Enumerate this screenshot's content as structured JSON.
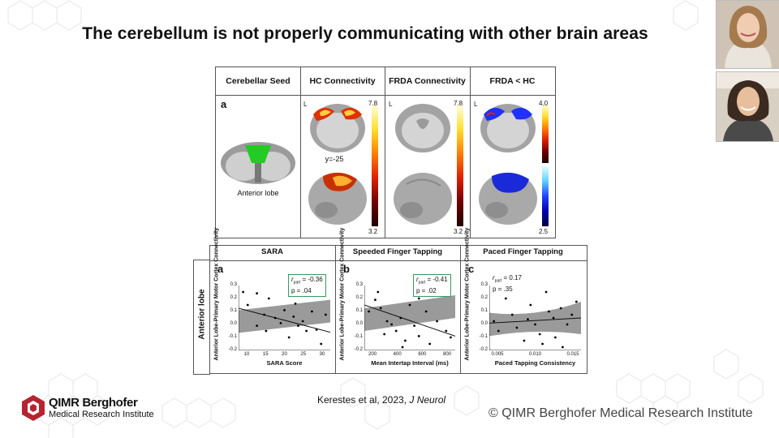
{
  "slide": {
    "title": "The cerebellum is not properly communicating with other brain areas",
    "citation_main": "Kerestes et al, 2023, ",
    "citation_journal": "J Neurol",
    "copyright": "© QIMR Berghofer Medical Research Institute"
  },
  "logo": {
    "name": "QIMR Berghofer",
    "subtitle": "Medical Research Institute",
    "colors": {
      "brand": "#b52430"
    }
  },
  "top_figure": {
    "headers": [
      "Cerebellar Seed",
      "HC Connectivity",
      "FRDA Connectivity",
      "FRDA < HC"
    ],
    "panel_label": "a",
    "seed_label": "Anterior lobe",
    "coord_label": "y=-25",
    "hemisphere_label": "L",
    "colorbars": [
      {
        "max": "7.8",
        "min": "3.2",
        "scheme": "hot"
      },
      {
        "max": "7.8",
        "min": "3.2",
        "scheme": "hot"
      },
      {
        "max": "4.0",
        "min": "2.5",
        "scheme": "hot-cold"
      }
    ]
  },
  "bottom_figure": {
    "row_label": "Anterior lobe",
    "ylabel": "Anterior Lobe-Primary Motor Cortex Connectivity",
    "y_ticks": [
      "0.3",
      "0.2",
      "0.1",
      "0.0",
      "-0.1",
      "-0.2"
    ],
    "panels": [
      {
        "header": "SARA",
        "letter": "a",
        "r_text": "r",
        "r_sub": "part",
        "r_val": " = -0.36",
        "p_text": "p = .04",
        "boxed": true,
        "xlabel": "SARA Score",
        "x_ticks": [
          "10",
          "15",
          "20",
          "25",
          "30"
        ]
      },
      {
        "header": "Speeded Finger Tapping",
        "letter": "b",
        "r_text": "r",
        "r_sub": "part",
        "r_val": " = -0.41",
        "p_text": "p = .02",
        "boxed": true,
        "xlabel": "Mean Intertap Interval (ms)",
        "x_ticks": [
          "200",
          "400",
          "600",
          "800"
        ]
      },
      {
        "header": "Paced Finger Tapping",
        "letter": "c",
        "r_text": "r",
        "r_sub": "part",
        "r_val": " = 0.17",
        "p_text": "p = .35",
        "boxed": false,
        "xlabel": "Paced Tapping Consistency",
        "x_ticks": [
          "0.005",
          "0.010",
          "0.015"
        ]
      }
    ]
  }
}
